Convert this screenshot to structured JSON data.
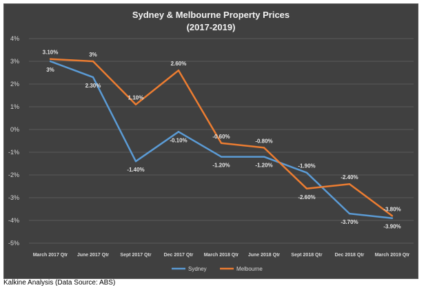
{
  "source_note": "Kalkine Analysis (Data Source: ABS)",
  "chart_data": {
    "type": "line",
    "title_lines": [
      "Sydney & Melbourne Property Prices",
      "(2017-2019)"
    ],
    "categories": [
      "March 2017 Qtr",
      "June 2017 Qtr",
      "Sept 2017 Qtr",
      "Dec 2017 Qtr",
      "March 2018 Qtr",
      "June 2018 Qtr",
      "Sept 2018 Qtr",
      "Dec 2018 Qtr",
      "March 2019 Qtr"
    ],
    "ylim": [
      -5,
      4
    ],
    "yticks": [
      "4%",
      "3%",
      "2%",
      "1%",
      "0%",
      "-1%",
      "-2%",
      "-3%",
      "-4%",
      "-5%"
    ],
    "grid": true,
    "legend_position": "bottom",
    "series": [
      {
        "name": "Sydney",
        "color": "#5b9bd5",
        "values": [
          3.0,
          2.3,
          -1.4,
          -0.1,
          -1.2,
          -1.2,
          -1.9,
          -3.7,
          -3.9
        ],
        "labels": [
          "3%",
          "2.30%",
          "-1.40%",
          "-0.10%",
          "-1.20%",
          "-1.20%",
          "-1.90%",
          "-3.70%",
          "-3.90%"
        ]
      },
      {
        "name": "Melbourne",
        "color": "#ed7d31",
        "values": [
          3.1,
          3.0,
          1.1,
          2.6,
          -0.6,
          -0.8,
          -2.6,
          -2.4,
          -3.8
        ],
        "labels": [
          "3.10%",
          "3%",
          "1.10%",
          "2.60%",
          "-0.60%",
          "-0.80%",
          "-2.60%",
          "-2.40%",
          "-3.80%"
        ]
      }
    ]
  }
}
